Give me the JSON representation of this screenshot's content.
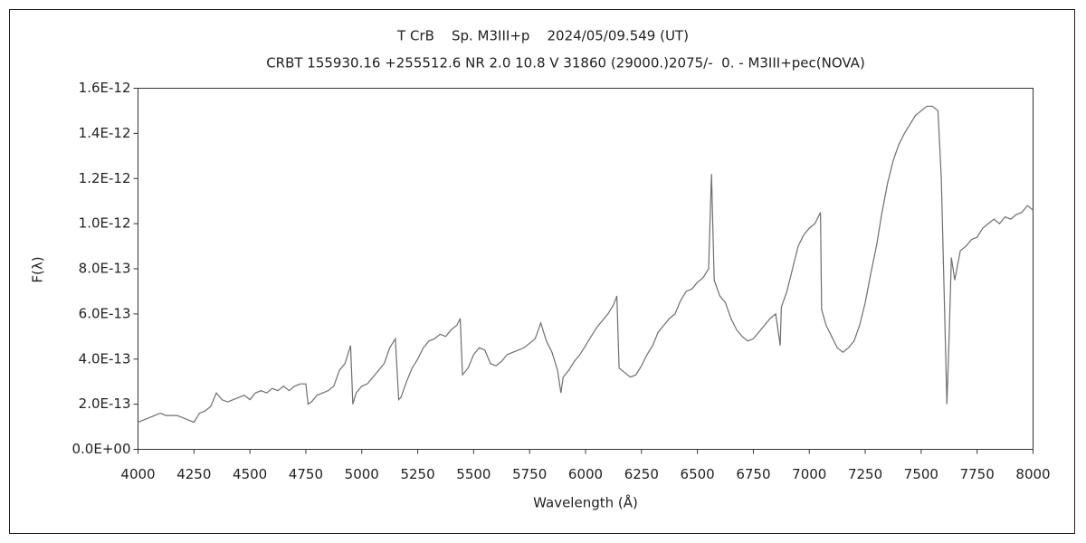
{
  "chart_data": {
    "type": "line",
    "title": "T CrB    Sp. M3III+p    2024/05/09.549 (UT)",
    "subtitle": "CRBT 155930.16 +255512.6 NR 2.0 10.8 V 31860 (29000.)2075/-  0. - M3III+pec(NOVA)",
    "x_label": "Wavelength (Å)",
    "y_label": "F(λ)",
    "color": "#6e6e6e",
    "grid": false,
    "xlim": [
      4000,
      8000
    ],
    "xticks": [
      4000,
      4250,
      4500,
      4750,
      5000,
      5250,
      5500,
      5750,
      6000,
      6250,
      6500,
      6750,
      7000,
      7250,
      7500,
      7750,
      8000
    ],
    "ylim": [
      0,
      1.6e-12
    ],
    "yticks": [
      {
        "value": 0,
        "label": "0.0E+00"
      },
      {
        "value": 2e-13,
        "label": "2.0E-13"
      },
      {
        "value": 4e-13,
        "label": "4.0E-13"
      },
      {
        "value": 6e-13,
        "label": "6.0E-13"
      },
      {
        "value": 8e-13,
        "label": "8.0E-13"
      },
      {
        "value": 1e-12,
        "label": "1.0E-12"
      },
      {
        "value": 1.2e-12,
        "label": "1.2E-12"
      },
      {
        "value": 1.4e-12,
        "label": "1.4E-12"
      },
      {
        "value": 1.6e-12,
        "label": "1.6E-12"
      }
    ],
    "x": [
      4000,
      4025,
      4050,
      4075,
      4100,
      4125,
      4150,
      4175,
      4200,
      4225,
      4250,
      4275,
      4300,
      4325,
      4350,
      4375,
      4400,
      4425,
      4450,
      4475,
      4500,
      4525,
      4550,
      4575,
      4600,
      4625,
      4650,
      4675,
      4700,
      4725,
      4750,
      4760,
      4775,
      4800,
      4825,
      4850,
      4875,
      4900,
      4925,
      4950,
      4960,
      4975,
      5000,
      5025,
      5050,
      5075,
      5100,
      5125,
      5150,
      5165,
      5175,
      5200,
      5225,
      5250,
      5275,
      5300,
      5325,
      5350,
      5375,
      5400,
      5425,
      5440,
      5450,
      5475,
      5500,
      5525,
      5550,
      5575,
      5600,
      5625,
      5650,
      5675,
      5700,
      5725,
      5750,
      5775,
      5800,
      5825,
      5850,
      5875,
      5890,
      5900,
      5925,
      5950,
      5975,
      6000,
      6025,
      6050,
      6075,
      6100,
      6125,
      6140,
      6150,
      6175,
      6200,
      6225,
      6250,
      6275,
      6300,
      6325,
      6350,
      6375,
      6400,
      6425,
      6450,
      6475,
      6500,
      6525,
      6550,
      6563,
      6575,
      6600,
      6625,
      6650,
      6675,
      6700,
      6725,
      6750,
      6775,
      6800,
      6825,
      6850,
      6870,
      6875,
      6900,
      6925,
      6950,
      6975,
      7000,
      7025,
      7050,
      7055,
      7075,
      7100,
      7125,
      7150,
      7175,
      7200,
      7225,
      7250,
      7275,
      7300,
      7325,
      7350,
      7375,
      7400,
      7425,
      7450,
      7475,
      7500,
      7525,
      7550,
      7575,
      7590,
      7600,
      7615,
      7625,
      7635,
      7650,
      7675,
      7700,
      7725,
      7750,
      7775,
      7800,
      7825,
      7850,
      7875,
      7900,
      7925,
      7950,
      7975,
      8000
    ],
    "values": [
      1.2e-13,
      1.3e-13,
      1.4e-13,
      1.5e-13,
      1.6e-13,
      1.5e-13,
      1.5e-13,
      1.5e-13,
      1.4e-13,
      1.3e-13,
      1.2e-13,
      1.6e-13,
      1.7e-13,
      1.9e-13,
      2.5e-13,
      2.2e-13,
      2.1e-13,
      2.2e-13,
      2.3e-13,
      2.4e-13,
      2.2e-13,
      2.5e-13,
      2.6e-13,
      2.5e-13,
      2.7e-13,
      2.6e-13,
      2.8e-13,
      2.6e-13,
      2.8e-13,
      2.9e-13,
      2.9e-13,
      2e-13,
      2.1e-13,
      2.4e-13,
      2.5e-13,
      2.6e-13,
      2.8e-13,
      3.5e-13,
      3.8e-13,
      4.6e-13,
      2e-13,
      2.5e-13,
      2.8e-13,
      2.9e-13,
      3.2e-13,
      3.5e-13,
      3.8e-13,
      4.5e-13,
      4.9e-13,
      2.2e-13,
      2.3e-13,
      3e-13,
      3.6e-13,
      4e-13,
      4.5e-13,
      4.8e-13,
      4.9e-13,
      5.1e-13,
      5e-13,
      5.3e-13,
      5.5e-13,
      5.8e-13,
      3.3e-13,
      3.6e-13,
      4.2e-13,
      4.5e-13,
      4.4e-13,
      3.8e-13,
      3.7e-13,
      3.9e-13,
      4.2e-13,
      4.3e-13,
      4.4e-13,
      4.5e-13,
      4.7e-13,
      4.9e-13,
      5.6e-13,
      4.8e-13,
      4.3e-13,
      3.5e-13,
      2.5e-13,
      3.2e-13,
      3.5e-13,
      3.9e-13,
      4.2e-13,
      4.6e-13,
      5e-13,
      5.4e-13,
      5.7e-13,
      6e-13,
      6.4e-13,
      6.8e-13,
      3.6e-13,
      3.4e-13,
      3.2e-13,
      3.3e-13,
      3.7e-13,
      4.2e-13,
      4.6e-13,
      5.2e-13,
      5.5e-13,
      5.8e-13,
      6e-13,
      6.6e-13,
      7e-13,
      7.1e-13,
      7.4e-13,
      7.6e-13,
      8e-13,
      1.22e-12,
      7.5e-13,
      6.8e-13,
      6.5e-13,
      5.8e-13,
      5.3e-13,
      5e-13,
      4.8e-13,
      4.9e-13,
      5.2e-13,
      5.5e-13,
      5.8e-13,
      6e-13,
      4.6e-13,
      6.3e-13,
      7e-13,
      8e-13,
      9e-13,
      9.5e-13,
      9.8e-13,
      1e-12,
      1.05e-12,
      6.2e-13,
      5.5e-13,
      5e-13,
      4.5e-13,
      4.3e-13,
      4.5e-13,
      4.8e-13,
      5.5e-13,
      6.5e-13,
      7.8e-13,
      9e-13,
      1.05e-12,
      1.18e-12,
      1.28e-12,
      1.35e-12,
      1.4e-12,
      1.44e-12,
      1.48e-12,
      1.5e-12,
      1.52e-12,
      1.52e-12,
      1.5e-12,
      1.2e-12,
      8e-13,
      2e-13,
      5e-13,
      8.5e-13,
      7.5e-13,
      8.8e-13,
      9e-13,
      9.3e-13,
      9.4e-13,
      9.8e-13,
      1e-12,
      1.02e-12,
      1e-12,
      1.03e-12,
      1.02e-12,
      1.04e-12,
      1.05e-12,
      1.08e-12,
      1.06e-12
    ]
  }
}
